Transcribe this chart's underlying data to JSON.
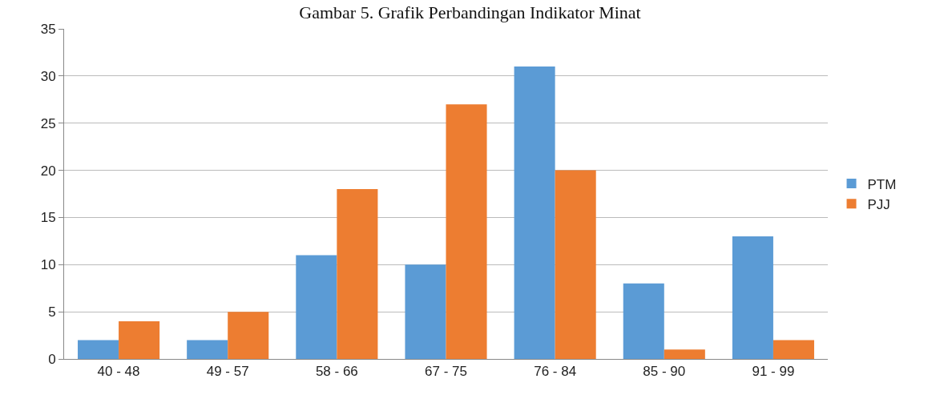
{
  "chart_data": {
    "type": "bar",
    "title": "Gambar 5. Grafik Perbandingan Indikator Minat",
    "categories": [
      "40 - 48",
      "49 - 57",
      "58 - 66",
      "67 - 75",
      "76 - 84",
      "85 - 90",
      "91 - 99"
    ],
    "series": [
      {
        "name": "PTM",
        "color": "#5b9bd5",
        "values": [
          2,
          2,
          11,
          10,
          31,
          8,
          13
        ]
      },
      {
        "name": "PJJ",
        "color": "#ed7d31",
        "values": [
          4,
          5,
          18,
          27,
          20,
          1,
          2
        ]
      }
    ],
    "ylim": [
      0,
      35
    ],
    "yticks": [
      0,
      5,
      10,
      15,
      20,
      25,
      30,
      35
    ],
    "grid": "y",
    "legend": "right"
  }
}
